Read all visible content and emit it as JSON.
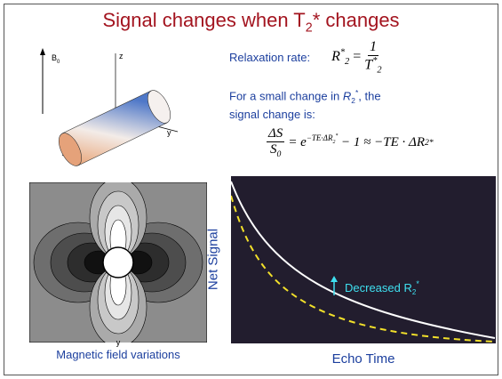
{
  "title": {
    "text": "Signal changes when T",
    "sub": "2",
    "suffix": "* changes"
  },
  "diagram": {
    "b_label": "B",
    "b_sub": "0",
    "z_label": "z",
    "y_label": "y"
  },
  "relaxation": {
    "label": "Relaxation rate:",
    "lhs": "R",
    "lhs_sup": "*",
    "lhs_sub": "2",
    "eq": "=",
    "num": "1",
    "den": "T",
    "den_sup": "*",
    "den_sub": "2"
  },
  "small_change": {
    "pre": "For a small change in ",
    "sym": "R",
    "sym_sub": "2",
    "sym_sup": "*",
    "post": ", the signal change is:"
  },
  "equation": {
    "num": "ΔS",
    "den": "S",
    "den_sub": "0",
    "base": "= e",
    "exp": "−TE·ΔR",
    "exp_sub": "2",
    "exp_sup": "*",
    "rest": " − 1 ≈ −TE · ΔR",
    "rest_sub": "2",
    "rest_sup": "*"
  },
  "field_map": {
    "axis_label": "y",
    "caption": "Magnetic field variations"
  },
  "signal_plot": {
    "y_label": "Net Signal",
    "x_label": "Echo Time",
    "annotation": "Decreased R",
    "annotation_sub": "2",
    "annotation_sup": "*"
  }
}
